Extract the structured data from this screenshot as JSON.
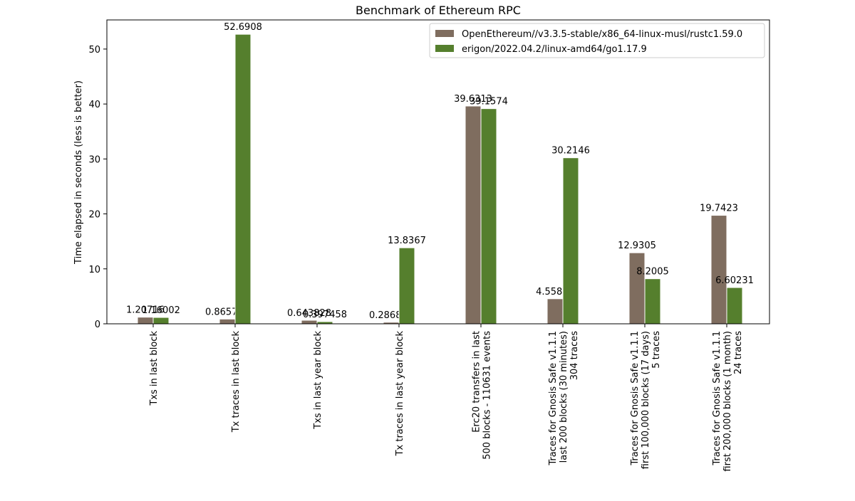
{
  "chart_data": {
    "type": "bar",
    "title": "Benchmark of Ethereum RPC",
    "xlabel": "",
    "ylabel": "Time elapsed in seconds (less is better)",
    "ylim": [
      0,
      55.3
    ],
    "yticks": [
      0,
      10,
      20,
      30,
      40,
      50
    ],
    "grid": false,
    "legend_position": "top-right",
    "categories": [
      [
        "Txs in last block"
      ],
      [
        "Tx traces in last block"
      ],
      [
        "Txs in last year block"
      ],
      [
        "Tx traces in last year block"
      ],
      [
        "Erc20 transfers in last",
        "500 blocks - 110631 events"
      ],
      [
        "Traces for Gnosis Safe v1.1.1",
        "last 200 blocks (30 minutes)",
        "304 traces"
      ],
      [
        "Traces for Gnosis Safe v1.1.1",
        "first 100,000 blocks (17 days)",
        "5 traces"
      ],
      [
        "Traces for Gnosis Safe v1.1.1",
        "first 200,000 blocks (1 month)",
        "24 traces"
      ]
    ],
    "series": [
      {
        "name": "OpenEthereum//v3.3.5-stable/x86_64-linux-musl/rustc1.59.0",
        "color": "#7f6d5f",
        "values": [
          1.20716,
          0.865713,
          0.643828,
          0.286866,
          39.6313,
          4.55867,
          12.9305,
          19.7423
        ],
        "labels": [
          "1.20716",
          "0.865713",
          "0.643828",
          "0.286866",
          "39.6313",
          "4.55867",
          "12.9305",
          "19.7423"
        ]
      },
      {
        "name": "erigon/2022.04.2/linux-amd64/go1.17.9",
        "color": "#557f2d",
        "values": [
          1.16002,
          52.6908,
          0.397458,
          13.8367,
          39.1574,
          30.2146,
          8.2005,
          6.60231
        ],
        "labels": [
          "1.16002",
          "52.6908",
          "0.397458",
          "13.8367",
          "39.1574",
          "30.2146",
          "8.2005",
          "6.60231"
        ]
      }
    ]
  }
}
